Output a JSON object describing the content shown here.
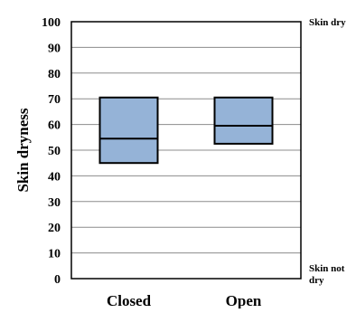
{
  "chart_data": {
    "type": "boxplot",
    "ylabel": "Skin dryness",
    "xlabel": "",
    "ylim": [
      0,
      100
    ],
    "yticks": [
      0,
      10,
      20,
      30,
      40,
      50,
      60,
      70,
      80,
      90,
      100
    ],
    "categories": [
      "Closed",
      "Open"
    ],
    "boxes": [
      {
        "category": "Closed",
        "q1": 45,
        "median": 54.5,
        "q3": 70.5
      },
      {
        "category": "Open",
        "q1": 52.5,
        "median": 59.5,
        "q3": 70.5
      }
    ],
    "annotations": {
      "top": "Skin dry",
      "bottom_line1": "Skin not",
      "bottom_line2": "dry"
    },
    "grid": true,
    "box_color": "#95b3d7",
    "grid_color": "#8c8c8c"
  }
}
